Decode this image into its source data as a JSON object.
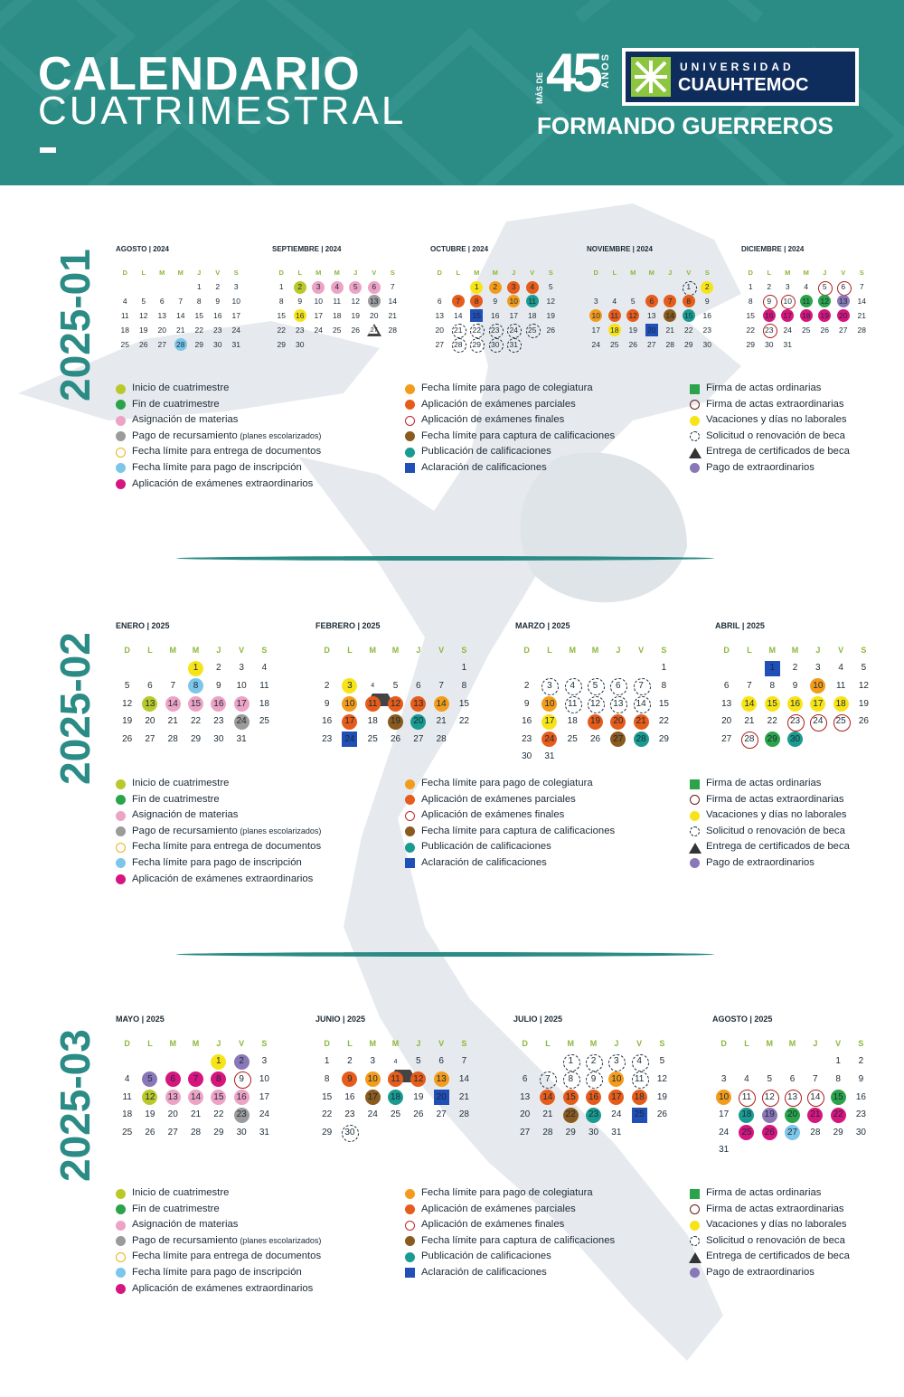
{
  "header": {
    "title_line1": "CALENDARIO",
    "title_line2": "CUATRIMESTRAL",
    "badge_mas": "MÁS DE",
    "badge_number": "45",
    "badge_anos": "AÑOS",
    "university_line1": "UNIVERSIDAD",
    "university_line2": "CUAUHTEMOC",
    "motto": "FORMANDO GUERREROS"
  },
  "weekday_headers": [
    "D",
    "L",
    "M",
    "M",
    "J",
    "V",
    "S"
  ],
  "legend_items": [
    {
      "label": "Inicio de cuatrimestre",
      "color": "#b9c92a",
      "shape": "circle"
    },
    {
      "label": "Fin de cuatrimestre",
      "color": "#2aa34a",
      "shape": "circle"
    },
    {
      "label": "Asignación de materias",
      "color": "#eda3c5",
      "shape": "circle"
    },
    {
      "label": "Pago de recursamiento",
      "note": "(planes escolarizados)",
      "color": "#9b9b9b",
      "shape": "circle"
    },
    {
      "label": "Fecha límite para entrega de documentos",
      "color": "#e9b21a",
      "shape": "ring"
    },
    {
      "label": "Fecha límite para pago de inscripción",
      "color": "#7cc6ea",
      "shape": "circle"
    },
    {
      "label": "Aplicación de exámenes extraordinarios",
      "color": "#d6157e",
      "shape": "circle"
    },
    {
      "label": "Fecha límite para pago de colegiatura",
      "color": "#f39c1b",
      "shape": "circle"
    },
    {
      "label": "Aplicación de exámenes parciales",
      "color": "#e65c1b",
      "shape": "circle"
    },
    {
      "label": "Aplicación de exámenes finales",
      "color": "#c0272d",
      "shape": "ring"
    },
    {
      "label": "Fecha límite para captura de calificaciones",
      "color": "#8a5a1e",
      "shape": "circle"
    },
    {
      "label": "Publicación de calificaciones",
      "color": "#1a9b91",
      "shape": "circle"
    },
    {
      "label": "Aclaración de calificaciones",
      "color": "#1f4fb7",
      "shape": "square"
    },
    {
      "label": "Firma de actas ordinarias",
      "color": "#2aa34a",
      "shape": "square"
    },
    {
      "label": "Firma de actas extraordinarias",
      "color": "#6b1a1a",
      "shape": "ring"
    },
    {
      "label": "Vacaciones y días no laborales",
      "color": "#f7e418",
      "shape": "circle"
    },
    {
      "label": "Solicitud o renovación de beca",
      "color": "#1c2b36",
      "shape": "dashed"
    },
    {
      "label": "Entrega de certificados de beca",
      "color": "#333333",
      "shape": "triangle"
    },
    {
      "label": "Pago de extraordinarios",
      "color": "#8a77b8",
      "shape": "circle"
    }
  ],
  "periods": [
    {
      "title": "2025-01",
      "months": [
        {
          "name": "AGOSTO | 2024",
          "start": 4,
          "days": 31,
          "marks": {
            "28": "lblue"
          }
        },
        {
          "name": "SEPTIEMBRE | 2024",
          "start": 0,
          "days": 30,
          "marks": {
            "2": "lime",
            "3": "pink",
            "4": "pink",
            "5": "pink",
            "6": "pink",
            "13": "gray",
            "16": "yellow",
            "27": "tri"
          }
        },
        {
          "name": "OCTUBRE | 2024",
          "start": 2,
          "days": 31,
          "marks": {
            "1": "yellow",
            "2": "orange",
            "3": "dorange",
            "4": "dorange",
            "7": "dorange",
            "8": "dorange",
            "10": "orange",
            "11": "teal",
            "15": "blue",
            "21": "dashed",
            "22": "dashed",
            "23": "dashed",
            "24": "dashed",
            "25": "dashed",
            "28": "dashed",
            "29": "dashed",
            "30": "dashed",
            "31": "dashed"
          }
        },
        {
          "name": "NOVIEMBRE | 2024",
          "start": 5,
          "days": 30,
          "marks": {
            "1": "dashed",
            "2": "yellow",
            "6": "dorange",
            "7": "dorange",
            "8": "dorange",
            "11": "dorange",
            "12": "dorange",
            "10": "orange",
            "14": "brown",
            "15": "teal",
            "18": "yellow",
            "20": "blue"
          }
        },
        {
          "name": "DICIEMBRE | 2024",
          "start": 0,
          "days": 31,
          "marks": {
            "5": "ring",
            "6": "ring",
            "9": "ring",
            "10": "ring",
            "11": "green",
            "12": "green",
            "13": "purple",
            "16": "mag",
            "17": "mag",
            "18": "mag",
            "19": "mag",
            "20": "mag",
            "23": "ring"
          }
        }
      ]
    },
    {
      "title": "2025-02",
      "months": [
        {
          "name": "ENERO | 2025",
          "start": 3,
          "days": 31,
          "marks": {
            "1": "yellow",
            "8": "lblue",
            "13": "lime",
            "14": "pink",
            "15": "pink",
            "16": "pink",
            "17": "pink",
            "24": "gray"
          }
        },
        {
          "name": "FEBRERO | 2025",
          "start": 6,
          "days": 28,
          "marks": {
            "3": "yellow",
            "4": "tri",
            "10": "orange",
            "11": "dorange",
            "12": "dorange",
            "13": "dorange",
            "14": "orange",
            "17": "dorange",
            "19": "brown",
            "20": "teal",
            "24": "blue"
          }
        },
        {
          "name": "MARZO | 2025",
          "start": 6,
          "days": 31,
          "marks": {
            "3": "dashed",
            "4": "dashed",
            "5": "dashed",
            "6": "dashed",
            "7": "dashed",
            "10": "orange",
            "11": "dashed",
            "12": "dashed",
            "13": "dashed",
            "14": "dashed",
            "17": "yellow",
            "19": "dorange",
            "20": "dorange",
            "21": "dorange",
            "24": "dorange",
            "27": "brown",
            "28": "teal"
          }
        },
        {
          "name": "ABRIL | 2025",
          "start": 2,
          "days": 30,
          "marks": {
            "1": "blue",
            "10": "orange",
            "14": "yellow",
            "15": "yellow",
            "16": "yellow",
            "17": "yellow",
            "18": "yellow",
            "23": "ring",
            "24": "ring",
            "25": "ring",
            "28": "ring",
            "29": "green",
            "30": "teal"
          }
        }
      ]
    },
    {
      "title": "2025-03",
      "months": [
        {
          "name": "MAYO | 2025",
          "start": 4,
          "days": 31,
          "marks": {
            "1": "yellow",
            "2": "purple",
            "5": "purple",
            "6": "mag",
            "7": "mag",
            "8": "mag",
            "9": "ring",
            "12": "lime",
            "13": "pink",
            "14": "pink",
            "15": "pink",
            "16": "pink",
            "23": "gray"
          }
        },
        {
          "name": "JUNIO | 2025",
          "start": 0,
          "days": 30,
          "marks": {
            "4": "tri",
            "9": "dorange",
            "10": "orange",
            "11": "dorange",
            "12": "dorange",
            "13": "orange",
            "17": "brown",
            "18": "teal",
            "20": "blue",
            "30": "dashed"
          }
        },
        {
          "name": "JULIO | 2025",
          "start": 2,
          "days": 31,
          "marks": {
            "1": "dashed",
            "2": "dashed",
            "3": "dashed",
            "4": "dashed",
            "7": "dashed",
            "8": "dashed",
            "9": "dashed",
            "10": "orange",
            "11": "dashed",
            "14": "dorange",
            "15": "dorange",
            "16": "dorange",
            "17": "dorange",
            "18": "dorange",
            "22": "brown",
            "23": "teal",
            "25": "blue"
          }
        },
        {
          "name": "AGOSTO | 2025",
          "start": 5,
          "days": 31,
          "marks": {
            "10": "orange",
            "11": "ring",
            "12": "ring",
            "13": "ring",
            "14": "ring",
            "15": "green",
            "18": "teal",
            "19": "purple",
            "20": "green",
            "21": "mag",
            "22": "mag",
            "25": "mag",
            "26": "mag",
            "27": "lblue"
          }
        }
      ]
    }
  ]
}
